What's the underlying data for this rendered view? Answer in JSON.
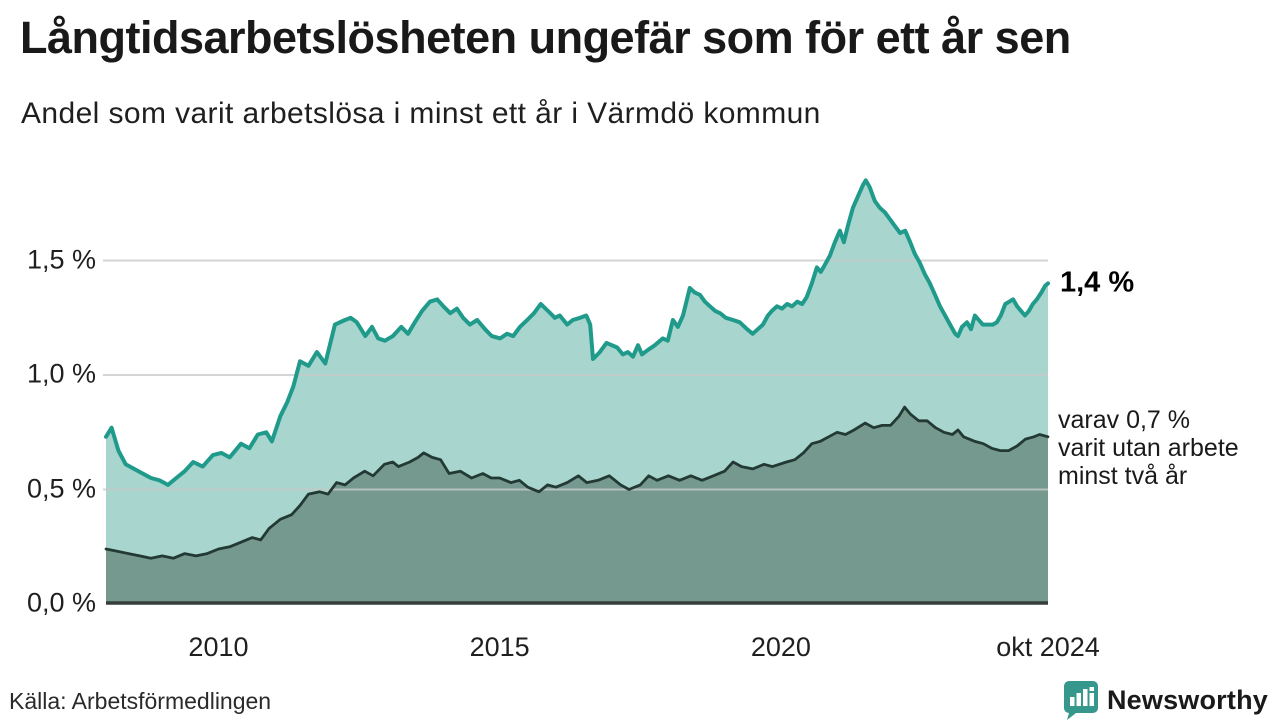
{
  "header": {
    "title": "Långtidsarbetslösheten ungefär som för ett år sen",
    "subtitle": "Andel som varit arbetslösa i minst ett år i Värmdö kommun"
  },
  "annotations": {
    "end_value_label": "1,4 %",
    "note_line1": "varav 0,7 %",
    "note_line2": "varit utan arbete",
    "note_line3": "minst två år"
  },
  "footer": {
    "source": "Källa: Arbetsförmedlingen",
    "brand": "Newsworthy"
  },
  "colors": {
    "line_primary": "#1f9a8b",
    "fill_primary": "#a8d5cd",
    "line_secondary": "#223a33",
    "fill_secondary": "#76998f",
    "gridline": "#c7cbc9",
    "axis": "#363e3a",
    "brand_teal": "#36988c"
  },
  "chart_data": {
    "type": "area",
    "title": "Långtidsarbetslösheten ungefär som för ett år sen",
    "subtitle": "Andel som varit arbetslösa i minst ett år i Värmdö kommun",
    "unit": "%",
    "x_domain": [
      2008.0,
      2024.75
    ],
    "ylim": [
      0,
      1.9
    ],
    "grid": true,
    "yticks": [
      {
        "v": 0.0,
        "label": "0,0 %"
      },
      {
        "v": 0.5,
        "label": "0,5 %"
      },
      {
        "v": 1.0,
        "label": "1,0 %"
      },
      {
        "v": 1.5,
        "label": "1,5 %"
      }
    ],
    "xticks": [
      {
        "v": 2010,
        "label": "2010"
      },
      {
        "v": 2015,
        "label": "2015"
      },
      {
        "v": 2020,
        "label": "2020"
      },
      {
        "v": 2024.75,
        "label": "okt 2024"
      }
    ],
    "series": [
      {
        "name": "Arbetslösa minst ett år",
        "end_label": "1,4 %",
        "color": "#1f9a8b",
        "fill": "#a8d5cd",
        "stroke_width": 4,
        "points": [
          [
            2008.0,
            0.73
          ],
          [
            2008.1,
            0.77
          ],
          [
            2008.22,
            0.67
          ],
          [
            2008.35,
            0.61
          ],
          [
            2008.5,
            0.59
          ],
          [
            2008.65,
            0.57
          ],
          [
            2008.8,
            0.55
          ],
          [
            2008.95,
            0.54
          ],
          [
            2009.1,
            0.52
          ],
          [
            2009.25,
            0.55
          ],
          [
            2009.4,
            0.58
          ],
          [
            2009.55,
            0.62
          ],
          [
            2009.72,
            0.6
          ],
          [
            2009.9,
            0.65
          ],
          [
            2010.05,
            0.66
          ],
          [
            2010.2,
            0.64
          ],
          [
            2010.4,
            0.7
          ],
          [
            2010.55,
            0.68
          ],
          [
            2010.7,
            0.74
          ],
          [
            2010.85,
            0.75
          ],
          [
            2010.95,
            0.71
          ],
          [
            2011.1,
            0.82
          ],
          [
            2011.22,
            0.88
          ],
          [
            2011.33,
            0.95
          ],
          [
            2011.45,
            1.06
          ],
          [
            2011.6,
            1.04
          ],
          [
            2011.75,
            1.1
          ],
          [
            2011.9,
            1.05
          ],
          [
            2012.07,
            1.22
          ],
          [
            2012.25,
            1.24
          ],
          [
            2012.35,
            1.25
          ],
          [
            2012.46,
            1.23
          ],
          [
            2012.61,
            1.17
          ],
          [
            2012.73,
            1.21
          ],
          [
            2012.84,
            1.16
          ],
          [
            2012.96,
            1.15
          ],
          [
            2013.1,
            1.17
          ],
          [
            2013.25,
            1.21
          ],
          [
            2013.37,
            1.18
          ],
          [
            2013.49,
            1.23
          ],
          [
            2013.62,
            1.28
          ],
          [
            2013.76,
            1.32
          ],
          [
            2013.89,
            1.33
          ],
          [
            2014.0,
            1.3
          ],
          [
            2014.12,
            1.27
          ],
          [
            2014.24,
            1.29
          ],
          [
            2014.35,
            1.25
          ],
          [
            2014.47,
            1.22
          ],
          [
            2014.6,
            1.24
          ],
          [
            2014.74,
            1.2
          ],
          [
            2014.86,
            1.17
          ],
          [
            2015.01,
            1.16
          ],
          [
            2015.13,
            1.18
          ],
          [
            2015.24,
            1.17
          ],
          [
            2015.36,
            1.21
          ],
          [
            2015.49,
            1.24
          ],
          [
            2015.61,
            1.27
          ],
          [
            2015.73,
            1.31
          ],
          [
            2015.86,
            1.28
          ],
          [
            2015.98,
            1.25
          ],
          [
            2016.07,
            1.26
          ],
          [
            2016.2,
            1.22
          ],
          [
            2016.3,
            1.24
          ],
          [
            2016.43,
            1.25
          ],
          [
            2016.54,
            1.26
          ],
          [
            2016.61,
            1.22
          ],
          [
            2016.66,
            1.07
          ],
          [
            2016.78,
            1.1
          ],
          [
            2016.9,
            1.14
          ],
          [
            2017.09,
            1.12
          ],
          [
            2017.19,
            1.09
          ],
          [
            2017.28,
            1.1
          ],
          [
            2017.37,
            1.08
          ],
          [
            2017.46,
            1.13
          ],
          [
            2017.53,
            1.09
          ],
          [
            2017.64,
            1.11
          ],
          [
            2017.76,
            1.13
          ],
          [
            2017.9,
            1.16
          ],
          [
            2017.99,
            1.15
          ],
          [
            2018.08,
            1.24
          ],
          [
            2018.17,
            1.21
          ],
          [
            2018.26,
            1.26
          ],
          [
            2018.38,
            1.38
          ],
          [
            2018.47,
            1.36
          ],
          [
            2018.56,
            1.35
          ],
          [
            2018.65,
            1.32
          ],
          [
            2018.74,
            1.3
          ],
          [
            2018.83,
            1.28
          ],
          [
            2018.92,
            1.27
          ],
          [
            2019.02,
            1.25
          ],
          [
            2019.15,
            1.24
          ],
          [
            2019.27,
            1.23
          ],
          [
            2019.4,
            1.2
          ],
          [
            2019.5,
            1.18
          ],
          [
            2019.59,
            1.2
          ],
          [
            2019.68,
            1.22
          ],
          [
            2019.77,
            1.26
          ],
          [
            2019.84,
            1.28
          ],
          [
            2019.93,
            1.3
          ],
          [
            2020.02,
            1.29
          ],
          [
            2020.11,
            1.31
          ],
          [
            2020.2,
            1.3
          ],
          [
            2020.29,
            1.32
          ],
          [
            2020.38,
            1.31
          ],
          [
            2020.46,
            1.34
          ],
          [
            2020.55,
            1.4
          ],
          [
            2020.64,
            1.47
          ],
          [
            2020.71,
            1.45
          ],
          [
            2020.78,
            1.48
          ],
          [
            2020.87,
            1.52
          ],
          [
            2020.96,
            1.58
          ],
          [
            2021.05,
            1.63
          ],
          [
            2021.12,
            1.58
          ],
          [
            2021.19,
            1.65
          ],
          [
            2021.28,
            1.73
          ],
          [
            2021.37,
            1.78
          ],
          [
            2021.46,
            1.83
          ],
          [
            2021.51,
            1.85
          ],
          [
            2021.58,
            1.82
          ],
          [
            2021.67,
            1.76
          ],
          [
            2021.76,
            1.73
          ],
          [
            2021.85,
            1.71
          ],
          [
            2021.94,
            1.68
          ],
          [
            2022.03,
            1.65
          ],
          [
            2022.12,
            1.62
          ],
          [
            2022.21,
            1.63
          ],
          [
            2022.3,
            1.58
          ],
          [
            2022.38,
            1.53
          ],
          [
            2022.47,
            1.49
          ],
          [
            2022.56,
            1.44
          ],
          [
            2022.65,
            1.4
          ],
          [
            2022.74,
            1.35
          ],
          [
            2022.83,
            1.3
          ],
          [
            2022.92,
            1.26
          ],
          [
            2023.01,
            1.22
          ],
          [
            2023.1,
            1.18
          ],
          [
            2023.15,
            1.17
          ],
          [
            2023.22,
            1.21
          ],
          [
            2023.31,
            1.23
          ],
          [
            2023.38,
            1.2
          ],
          [
            2023.45,
            1.26
          ],
          [
            2023.52,
            1.24
          ],
          [
            2023.59,
            1.22
          ],
          [
            2023.68,
            1.22
          ],
          [
            2023.77,
            1.22
          ],
          [
            2023.84,
            1.23
          ],
          [
            2023.91,
            1.26
          ],
          [
            2023.99,
            1.31
          ],
          [
            2024.06,
            1.32
          ],
          [
            2024.13,
            1.33
          ],
          [
            2024.2,
            1.3
          ],
          [
            2024.27,
            1.28
          ],
          [
            2024.34,
            1.26
          ],
          [
            2024.41,
            1.28
          ],
          [
            2024.48,
            1.31
          ],
          [
            2024.55,
            1.33
          ],
          [
            2024.63,
            1.36
          ],
          [
            2024.7,
            1.39
          ],
          [
            2024.75,
            1.4
          ]
        ]
      },
      {
        "name": "varav arbetslösa minst två år",
        "end_label": "varav 0,7 % varit utan arbete minst två år",
        "color": "#223a33",
        "fill": "#76998f",
        "stroke_width": 2.8,
        "points": [
          [
            2008.0,
            0.24
          ],
          [
            2008.2,
            0.23
          ],
          [
            2008.4,
            0.22
          ],
          [
            2008.6,
            0.21
          ],
          [
            2008.8,
            0.2
          ],
          [
            2009.0,
            0.21
          ],
          [
            2009.2,
            0.2
          ],
          [
            2009.4,
            0.22
          ],
          [
            2009.6,
            0.21
          ],
          [
            2009.8,
            0.22
          ],
          [
            2010.0,
            0.24
          ],
          [
            2010.2,
            0.25
          ],
          [
            2010.4,
            0.27
          ],
          [
            2010.6,
            0.29
          ],
          [
            2010.75,
            0.28
          ],
          [
            2010.9,
            0.33
          ],
          [
            2011.1,
            0.37
          ],
          [
            2011.3,
            0.39
          ],
          [
            2011.45,
            0.43
          ],
          [
            2011.6,
            0.48
          ],
          [
            2011.8,
            0.49
          ],
          [
            2011.95,
            0.48
          ],
          [
            2012.1,
            0.53
          ],
          [
            2012.25,
            0.52
          ],
          [
            2012.4,
            0.55
          ],
          [
            2012.6,
            0.58
          ],
          [
            2012.75,
            0.56
          ],
          [
            2012.95,
            0.61
          ],
          [
            2013.1,
            0.62
          ],
          [
            2013.2,
            0.6
          ],
          [
            2013.4,
            0.62
          ],
          [
            2013.55,
            0.64
          ],
          [
            2013.65,
            0.66
          ],
          [
            2013.8,
            0.64
          ],
          [
            2013.95,
            0.63
          ],
          [
            2014.1,
            0.57
          ],
          [
            2014.3,
            0.58
          ],
          [
            2014.5,
            0.55
          ],
          [
            2014.7,
            0.57
          ],
          [
            2014.85,
            0.55
          ],
          [
            2015.0,
            0.55
          ],
          [
            2015.2,
            0.53
          ],
          [
            2015.35,
            0.54
          ],
          [
            2015.5,
            0.51
          ],
          [
            2015.7,
            0.49
          ],
          [
            2015.85,
            0.52
          ],
          [
            2016.0,
            0.51
          ],
          [
            2016.2,
            0.53
          ],
          [
            2016.4,
            0.56
          ],
          [
            2016.55,
            0.53
          ],
          [
            2016.75,
            0.54
          ],
          [
            2016.95,
            0.56
          ],
          [
            2017.15,
            0.52
          ],
          [
            2017.3,
            0.5
          ],
          [
            2017.5,
            0.52
          ],
          [
            2017.65,
            0.56
          ],
          [
            2017.8,
            0.54
          ],
          [
            2018.0,
            0.56
          ],
          [
            2018.2,
            0.54
          ],
          [
            2018.4,
            0.56
          ],
          [
            2018.6,
            0.54
          ],
          [
            2018.8,
            0.56
          ],
          [
            2019.0,
            0.58
          ],
          [
            2019.15,
            0.62
          ],
          [
            2019.3,
            0.6
          ],
          [
            2019.5,
            0.59
          ],
          [
            2019.7,
            0.61
          ],
          [
            2019.85,
            0.6
          ],
          [
            2020.1,
            0.62
          ],
          [
            2020.25,
            0.63
          ],
          [
            2020.4,
            0.66
          ],
          [
            2020.55,
            0.7
          ],
          [
            2020.7,
            0.71
          ],
          [
            2020.85,
            0.73
          ],
          [
            2021.0,
            0.75
          ],
          [
            2021.15,
            0.74
          ],
          [
            2021.3,
            0.76
          ],
          [
            2021.5,
            0.79
          ],
          [
            2021.65,
            0.77
          ],
          [
            2021.8,
            0.78
          ],
          [
            2021.95,
            0.78
          ],
          [
            2022.1,
            0.82
          ],
          [
            2022.2,
            0.86
          ],
          [
            2022.3,
            0.83
          ],
          [
            2022.45,
            0.8
          ],
          [
            2022.6,
            0.8
          ],
          [
            2022.75,
            0.77
          ],
          [
            2022.9,
            0.75
          ],
          [
            2023.05,
            0.74
          ],
          [
            2023.15,
            0.76
          ],
          [
            2023.25,
            0.73
          ],
          [
            2023.45,
            0.71
          ],
          [
            2023.6,
            0.7
          ],
          [
            2023.75,
            0.68
          ],
          [
            2023.9,
            0.67
          ],
          [
            2024.05,
            0.67
          ],
          [
            2024.2,
            0.69
          ],
          [
            2024.35,
            0.72
          ],
          [
            2024.5,
            0.73
          ],
          [
            2024.6,
            0.74
          ],
          [
            2024.75,
            0.73
          ]
        ]
      }
    ]
  }
}
